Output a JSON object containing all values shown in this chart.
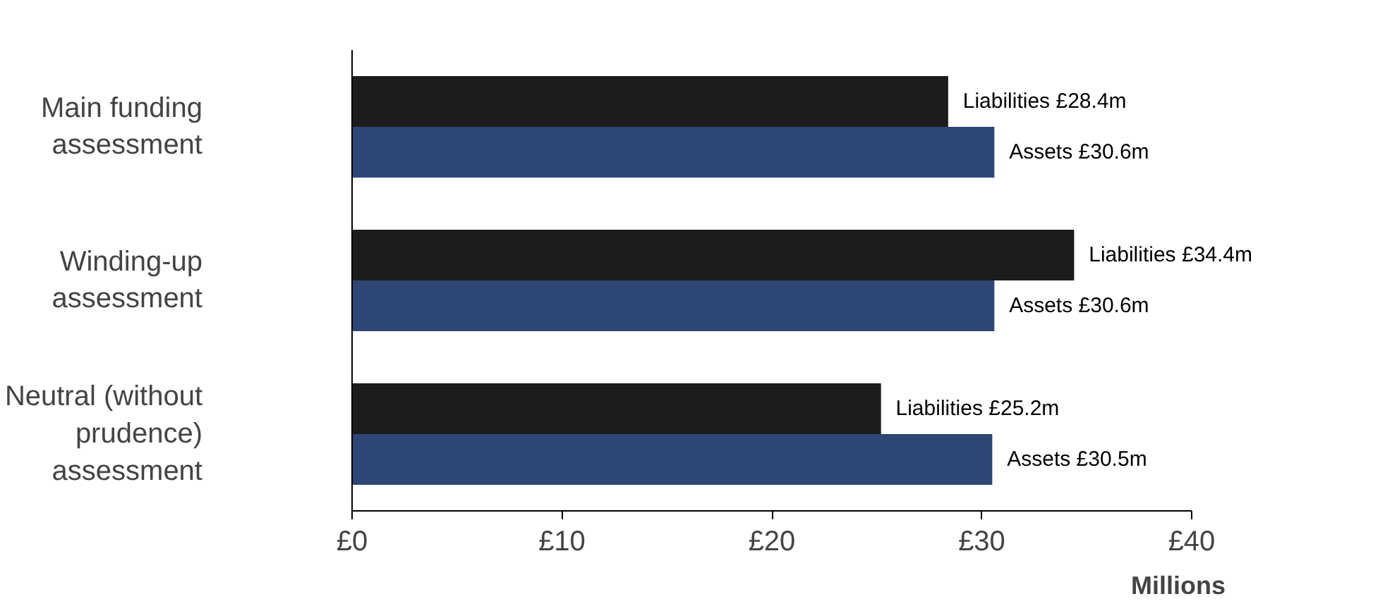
{
  "chart_data": {
    "type": "bar",
    "orientation": "horizontal",
    "categories": [
      "Main funding\nassessment",
      "Winding-up\nassessment",
      "Neutral (without\nprudence)\nassessment"
    ],
    "series": [
      {
        "color": "#1c1c1e",
        "values": [
          28.4,
          34.4,
          25.2
        ],
        "value_labels": [
          "Liabilities £28.4m",
          "Liabilities £34.4m",
          "Liabilities £25.2m"
        ]
      },
      {
        "color": "#2d4674",
        "values": [
          30.6,
          30.6,
          30.5
        ],
        "value_labels": [
          "Assets £30.6m",
          "Assets £30.6m",
          "Assets £30.5m"
        ]
      }
    ],
    "xlim": [
      0,
      40
    ],
    "xticks": [
      {
        "value": 0,
        "label": "£0"
      },
      {
        "value": 10,
        "label": "£10"
      },
      {
        "value": 20,
        "label": "£20"
      },
      {
        "value": 30,
        "label": "£30"
      },
      {
        "value": 40,
        "label": "£40"
      }
    ],
    "xlabel": "Millions",
    "grid": false
  }
}
